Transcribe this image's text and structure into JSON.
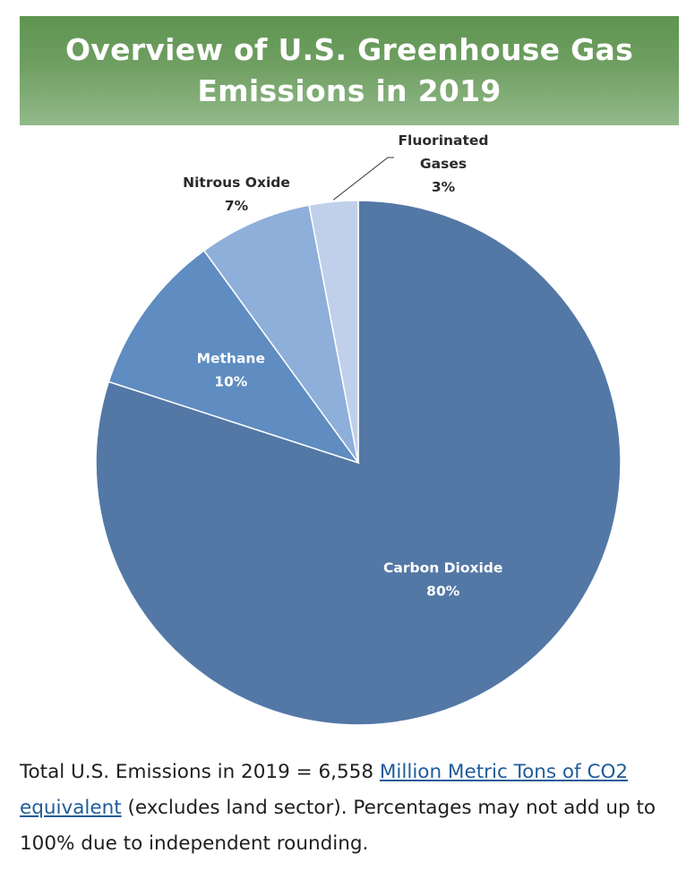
{
  "title": {
    "line1": "Overview of U.S. Greenhouse Gas",
    "line2": "Emissions in 2019"
  },
  "chart_data": {
    "type": "pie",
    "title": "Overview of U.S. Greenhouse Gas Emissions in 2019",
    "slices": [
      {
        "name": "Carbon Dioxide",
        "value": 80,
        "label": "80%",
        "color": "#5378a6",
        "label_color": "#ffffff"
      },
      {
        "name": "Methane",
        "value": 10,
        "label": "10%",
        "color": "#5f8cc1",
        "label_color": "#ffffff"
      },
      {
        "name": "Nitrous Oxide",
        "value": 7,
        "label": "7%",
        "color": "#8eafd9",
        "label_color": "#2b2b2b"
      },
      {
        "name": "Fluorinated Gases",
        "value": 3,
        "label": "3%",
        "color": "#c0d0ea",
        "label_color": "#2b2b2b"
      }
    ]
  },
  "caption": {
    "text1": "Total U.S. Emissions in 2019 = 6,558 ",
    "link": "Million Metric Tons of CO2 equivalent",
    "text2": " (excludes land sector). Percentages may not add up to 100% due to independent rounding."
  },
  "colors": {
    "banner_green": "#6f9f62",
    "link_blue": "#1f5c99"
  }
}
